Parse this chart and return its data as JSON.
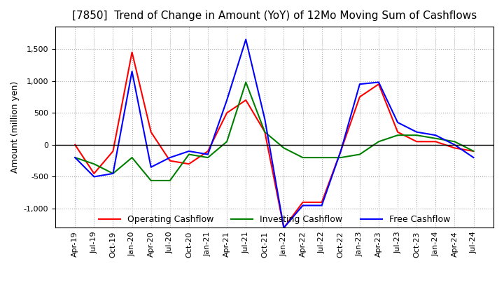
{
  "title": "[7850]  Trend of Change in Amount (YoY) of 12Mo Moving Sum of Cashflows",
  "ylabel": "Amount (million yen)",
  "x_labels": [
    "Apr-19",
    "Jul-19",
    "Oct-19",
    "Jan-20",
    "Apr-20",
    "Jul-20",
    "Oct-20",
    "Jan-21",
    "Apr-21",
    "Jul-21",
    "Oct-21",
    "Jan-22",
    "Apr-22",
    "Jul-22",
    "Oct-22",
    "Jan-23",
    "Apr-23",
    "Jul-23",
    "Oct-23",
    "Jan-24",
    "Apr-24",
    "Jul-24"
  ],
  "operating": [
    0,
    -450,
    -100,
    1450,
    200,
    -250,
    -300,
    -100,
    500,
    700,
    200,
    -1300,
    -900,
    -900,
    -100,
    750,
    950,
    200,
    50,
    50,
    -50,
    -100
  ],
  "investing": [
    -200,
    -300,
    -450,
    -200,
    -560,
    -560,
    -150,
    -200,
    50,
    980,
    200,
    -50,
    -200,
    -200,
    -200,
    -150,
    50,
    150,
    150,
    100,
    50,
    -100
  ],
  "free": [
    -200,
    -500,
    -450,
    1150,
    -350,
    -200,
    -100,
    -150,
    700,
    1650,
    400,
    -1300,
    -950,
    -950,
    -100,
    950,
    980,
    350,
    200,
    150,
    0,
    -200
  ],
  "ylim": [
    -1300,
    1850
  ],
  "yticks": [
    -1000,
    -500,
    0,
    500,
    1000,
    1500
  ],
  "operating_color": "#ff0000",
  "investing_color": "#008000",
  "free_color": "#0000ff",
  "background_color": "#ffffff",
  "grid_color": "#aaaaaa",
  "title_fontsize": 11,
  "label_fontsize": 9,
  "tick_fontsize": 8,
  "legend_fontsize": 9
}
